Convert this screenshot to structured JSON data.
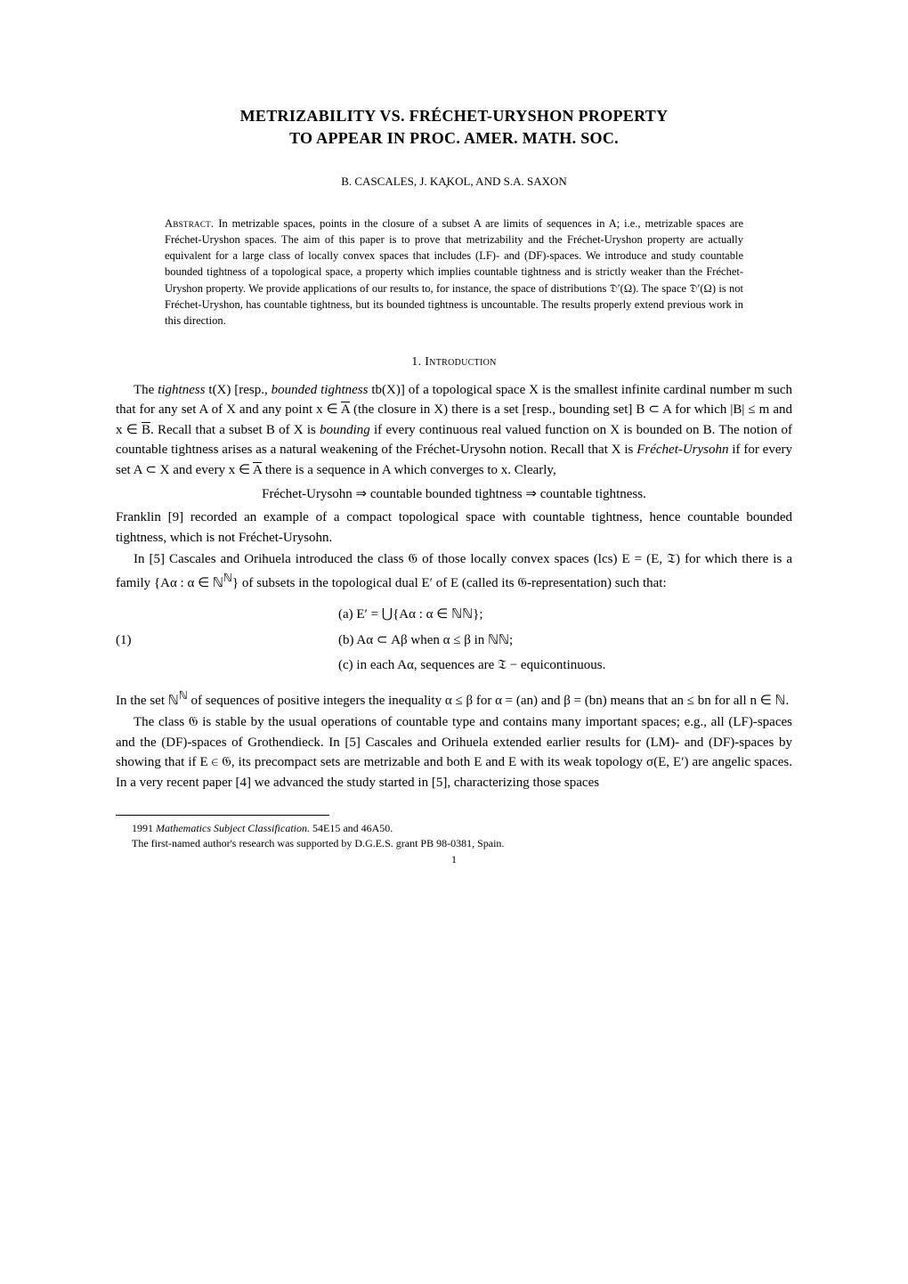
{
  "title": "METRIZABILITY VS. FRÉCHET-URYSHON PROPERTY",
  "subtitle": "TO APPEAR IN PROC. AMER. MATH. SOC.",
  "authors": "B. CASCALES, J. KA̧KOL, AND S.A. SAXON",
  "abstract_label": "Abstract.",
  "abstract_text": "In metrizable spaces, points in the closure of a subset A are limits of sequences in A; i.e., metrizable spaces are Fréchet-Uryshon spaces. The aim of this paper is to prove that metrizability and the Fréchet-Uryshon property are actually equivalent for a large class of locally convex spaces that includes (LF)- and (DF)-spaces. We introduce and study countable bounded tightness of a topological space, a property which implies countable tightness and is strictly weaker than the Fréchet-Uryshon property. We provide applications of our results to, for instance, the space of distributions 𝔇′(Ω). The space 𝔇′(Ω) is not Fréchet-Uryshon, has countable tightness, but its bounded tightness is uncountable. The results properly extend previous work in this direction.",
  "section_num": "1.",
  "section_title": "Introduction",
  "para1_a": "The ",
  "para1_tightness": "tightness",
  "para1_b": " t(X) [resp., ",
  "para1_bounded": "bounded tightness",
  "para1_c": " tb(X)] of a topological space X is the smallest infinite cardinal number m such that for any set A of X and any point x ∈ ",
  "para1_d": " (the closure in X) there is a set [resp., bounding set] B ⊂ A for which |B| ≤ m and x ∈ ",
  "para1_e": ". Recall that a subset B of X is ",
  "para1_bounding": "bounding",
  "para1_f": " if every continuous real valued function on X is bounded on B. The notion of countable tightness arises as a natural weakening of the Fréchet-Urysohn notion. Recall that X is ",
  "para1_fu": "Fréchet-Urysohn",
  "para1_g": " if for every set A ⊂ X and every x ∈ ",
  "para1_h": " there is a sequence in A which converges to x. Clearly,",
  "implication": "Fréchet-Urysohn ⇒ countable bounded tightness ⇒ countable tightness.",
  "para2": "Franklin [9] recorded an example of a compact topological space with countable tightness, hence countable bounded tightness, which is not Fréchet-Urysohn.",
  "para3_a": "In [5] Cascales and Orihuela introduced the class 𝔊 of those locally convex spaces (lcs) E = (E, 𝔗) for which there is a family {Aα : α ∈ ℕ",
  "para3_b": "} of subsets in the topological dual E′ of E (called its 𝔊-representation) such that:",
  "eq_a": "(a)  E′ = ⋃{Aα : α ∈ ℕℕ};",
  "eq_b": "(b)  Aα ⊂ Aβ when α ≤ β in ℕℕ;",
  "eq_c": "(c)  in each Aα,  sequences are 𝔗 − equicontinuous.",
  "eq_num": "(1)",
  "para4_a": "In the set ℕ",
  "para4_b": " of sequences of positive integers the inequality α ≤ β for α = (an) and β = (bn) means that an ≤ bn for all n ∈ ℕ.",
  "para5": "The class 𝔊 is stable by the usual operations of countable type and contains many important spaces; e.g., all (LF)-spaces and the (DF)-spaces of Grothendieck. In [5] Cascales and Orihuela extended earlier results for (LM)- and (DF)-spaces by showing that if E ∈ 𝔊, its precompact sets are metrizable and both E and E with its weak topology σ(E, E′) are angelic spaces. In a very recent paper [4] we advanced the study started in [5], characterizing those spaces",
  "footnote1_a": "1991 ",
  "footnote1_b": "Mathematics Subject Classification.",
  "footnote1_c": " 54E15 and 46A50.",
  "footnote2": "The first-named author's research was supported by D.G.E.S. grant PB 98-0381, Spain.",
  "page_number": "1",
  "overline_A": "A",
  "overline_B": "B",
  "sup_N": "ℕ"
}
